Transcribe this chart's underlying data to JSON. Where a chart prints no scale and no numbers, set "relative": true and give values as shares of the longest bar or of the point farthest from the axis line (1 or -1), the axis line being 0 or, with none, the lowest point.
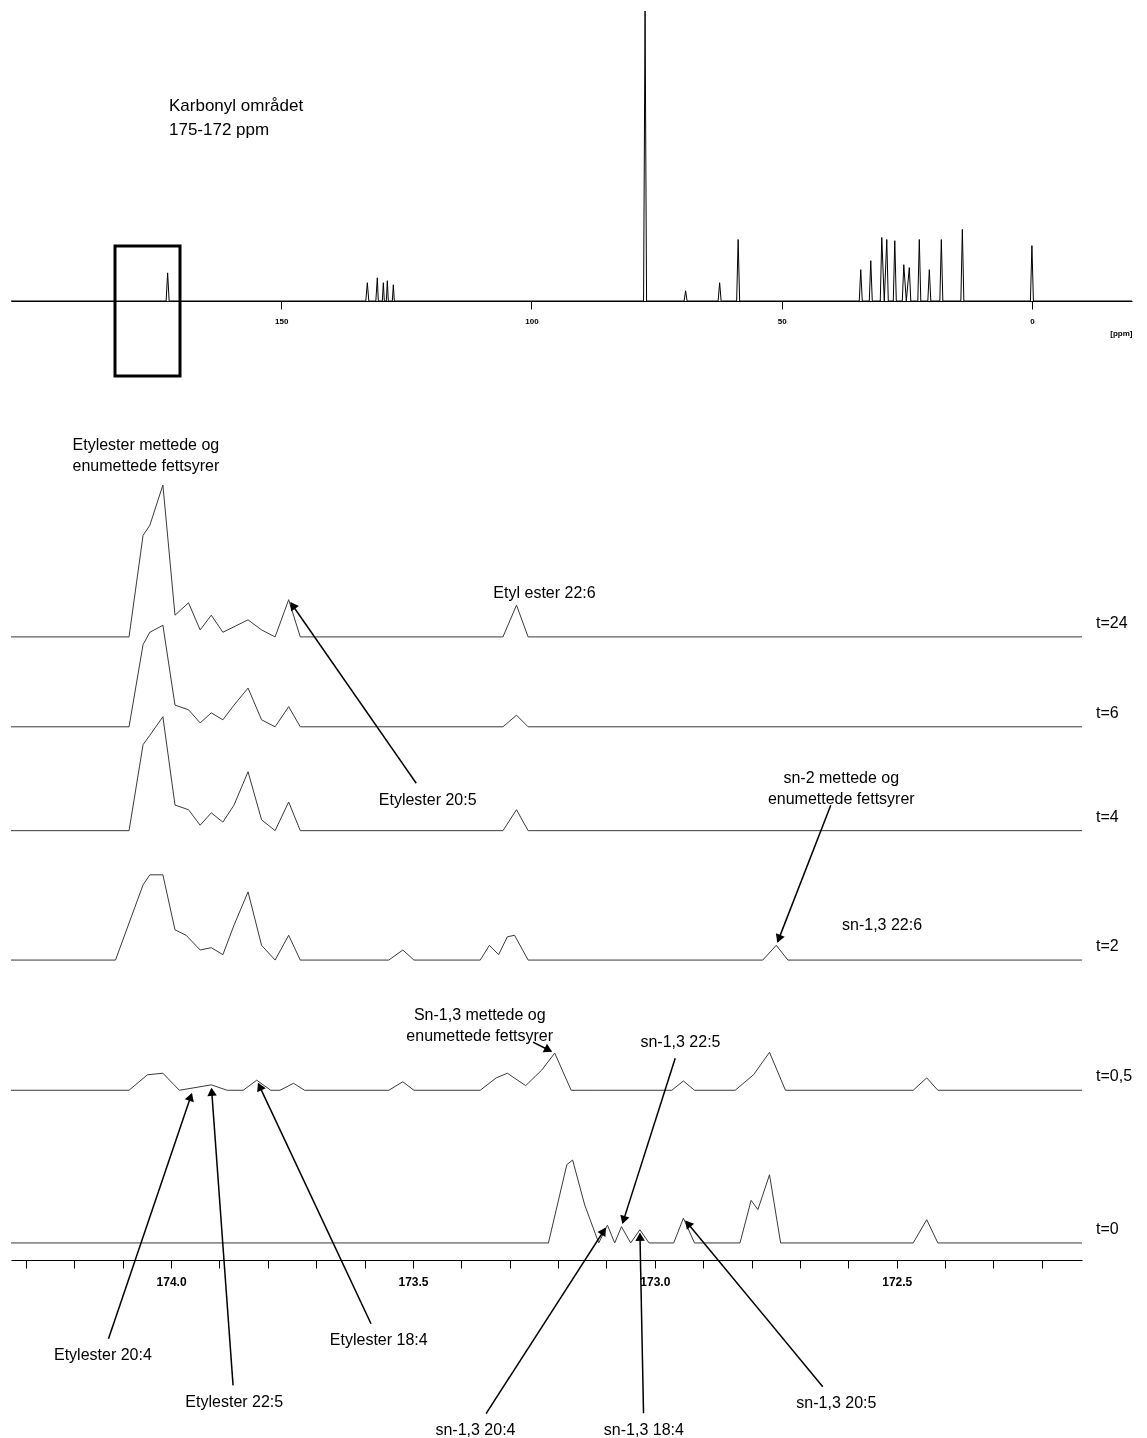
{
  "chart_data": [
    {
      "type": "line",
      "relative": true,
      "xlabel": "[ppm]",
      "xlim": [
        204,
        -20
      ],
      "xticks": [
        150,
        100,
        50,
        0
      ],
      "grid": false,
      "legend": false,
      "marker": "none",
      "line_style": "solid",
      "series": [
        {
          "color": "#000000",
          "x": [
            204,
            173.0,
            172.7,
            172.4,
            133.1,
            132.8,
            132.5,
            131.1,
            130.8,
            130.6,
            129.8,
            129.6,
            129.4,
            129.0,
            128.8,
            128.6,
            127.8,
            127.6,
            127.4,
            77.6,
            77.3,
            77.0,
            69.5,
            69.2,
            68.9,
            62.7,
            62.4,
            62.1,
            59.0,
            58.7,
            58.4,
            34.5,
            34.2,
            33.9,
            32.5,
            32.2,
            31.9,
            30.3,
            30.0,
            29.5,
            29.0,
            28.7,
            27.7,
            27.4,
            27.1,
            25.9,
            25.6,
            25.1,
            24.5,
            24.2,
            22.8,
            22.5,
            22.2,
            20.8,
            20.5,
            20.2,
            18.4,
            18.1,
            17.8,
            14.2,
            13.9,
            13.6,
            0.3,
            0,
            -0.3,
            -20
          ],
          "values": [
            0,
            0,
            0.097,
            0,
            0,
            0.063,
            0,
            0,
            0.08,
            0,
            0,
            0.063,
            0,
            0,
            0.07,
            0,
            0,
            0.056,
            0,
            0,
            1.0,
            0,
            0,
            0.035,
            0,
            0,
            0.063,
            0,
            0,
            0.212,
            0,
            0,
            0.108,
            0,
            0,
            0.139,
            0,
            0,
            0.219,
            0,
            0.212,
            0,
            0,
            0.208,
            0,
            0,
            0.125,
            0,
            0.115,
            0,
            0,
            0.212,
            0,
            0,
            0.108,
            0,
            0,
            0.212,
            0,
            0,
            0.247,
            0,
            0,
            0.191,
            0,
            0
          ]
        }
      ],
      "annotations": [
        "Karbonyl området\n175-172 ppm"
      ]
    },
    {
      "type": "line",
      "relative": true,
      "xlim": [
        174.331,
        172.117
      ],
      "xticks": [
        {
          "value": 174.3,
          "label": null
        },
        {
          "value": 174.2,
          "label": null
        },
        {
          "value": 174.1,
          "label": null
        },
        {
          "value": 174.0,
          "label": "174.0"
        },
        {
          "value": 173.9,
          "label": null
        },
        {
          "value": 173.8,
          "label": null
        },
        {
          "value": 173.7,
          "label": null
        },
        {
          "value": 173.6,
          "label": null
        },
        {
          "value": 173.5,
          "label": "173.5"
        },
        {
          "value": 173.4,
          "label": null
        },
        {
          "value": 173.3,
          "label": null
        },
        {
          "value": 173.2,
          "label": null
        },
        {
          "value": 173.1,
          "label": null
        },
        {
          "value": 173.0,
          "label": "173.0"
        },
        {
          "value": 172.9,
          "label": null
        },
        {
          "value": 172.8,
          "label": null
        },
        {
          "value": 172.7,
          "label": null
        },
        {
          "value": 172.6,
          "label": null
        },
        {
          "value": 172.5,
          "label": "172.5"
        },
        {
          "value": 172.4,
          "label": null
        },
        {
          "value": 172.3,
          "label": null
        },
        {
          "value": 172.2,
          "label": null
        }
      ],
      "grid": false,
      "legend": false,
      "marker": "none",
      "line_style": "solid",
      "series": [
        {
          "name": "t=24",
          "color": "#3a3a3a",
          "x": [
            174.331,
            174.087,
            174.058,
            174.044,
            174.017,
            173.992,
            173.964,
            173.94,
            173.917,
            173.893,
            173.841,
            173.813,
            173.785,
            173.757,
            173.733,
            173.314,
            173.286,
            173.262,
            172.117
          ],
          "values": [
            0.804,
            0.804,
            0.935,
            0.948,
            1.0,
            0.832,
            0.848,
            0.813,
            0.832,
            0.81,
            0.826,
            0.813,
            0.804,
            0.852,
            0.804,
            0.804,
            0.845,
            0.804,
            0.804
          ]
        },
        {
          "name": "t=6",
          "color": "#3a3a3a",
          "x": [
            174.331,
            174.087,
            174.058,
            174.044,
            174.017,
            173.992,
            173.964,
            173.94,
            173.917,
            173.893,
            173.87,
            173.841,
            173.813,
            173.785,
            173.757,
            173.733,
            173.314,
            173.286,
            173.262,
            172.117
          ],
          "values": [
            0.688,
            0.688,
            0.794,
            0.81,
            0.819,
            0.716,
            0.71,
            0.693,
            0.706,
            0.697,
            0.716,
            0.738,
            0.697,
            0.688,
            0.714,
            0.688,
            0.688,
            0.703,
            0.688,
            0.688
          ]
        },
        {
          "name": "t=4",
          "color": "#3a3a3a",
          "x": [
            174.331,
            174.087,
            174.058,
            174.044,
            174.017,
            173.992,
            173.964,
            173.94,
            173.917,
            173.893,
            173.87,
            173.841,
            173.813,
            173.785,
            173.757,
            173.733,
            173.314,
            173.286,
            173.262,
            172.117
          ],
          "values": [
            0.554,
            0.554,
            0.665,
            0.677,
            0.701,
            0.587,
            0.581,
            0.561,
            0.577,
            0.565,
            0.587,
            0.63,
            0.568,
            0.554,
            0.591,
            0.554,
            0.554,
            0.581,
            0.554,
            0.554
          ]
        },
        {
          "name": "t=2",
          "color": "#3a3a3a",
          "x": [
            174.331,
            174.115,
            174.058,
            174.044,
            174.017,
            173.992,
            173.969,
            173.94,
            173.917,
            173.893,
            173.87,
            173.841,
            173.813,
            173.785,
            173.757,
            173.733,
            173.55,
            173.521,
            173.498,
            173.361,
            173.342,
            173.323,
            173.305,
            173.29,
            173.262,
            172.777,
            172.749,
            172.725,
            172.117
          ],
          "values": [
            0.387,
            0.387,
            0.484,
            0.497,
            0.497,
            0.426,
            0.419,
            0.4,
            0.403,
            0.394,
            0.432,
            0.475,
            0.406,
            0.387,
            0.419,
            0.387,
            0.387,
            0.4,
            0.387,
            0.387,
            0.406,
            0.394,
            0.417,
            0.419,
            0.387,
            0.387,
            0.406,
            0.387,
            0.387
          ]
        },
        {
          "name": "t=0,5",
          "color": "#3a3a3a",
          "x": [
            174.331,
            174.087,
            174.049,
            174.017,
            173.983,
            173.917,
            173.884,
            173.851,
            173.823,
            173.794,
            173.775,
            173.747,
            173.724,
            173.55,
            173.521,
            173.498,
            173.361,
            173.328,
            173.305,
            173.267,
            173.234,
            173.207,
            173.173,
            173.126,
            172.965,
            172.941,
            172.918,
            172.834,
            172.796,
            172.763,
            172.73,
            172.466,
            172.438,
            172.415,
            172.117
          ],
          "values": [
            0.219,
            0.219,
            0.239,
            0.241,
            0.219,
            0.226,
            0.219,
            0.219,
            0.232,
            0.219,
            0.219,
            0.228,
            0.219,
            0.219,
            0.23,
            0.219,
            0.219,
            0.235,
            0.241,
            0.225,
            0.245,
            0.267,
            0.219,
            0.219,
            0.219,
            0.231,
            0.219,
            0.219,
            0.239,
            0.268,
            0.219,
            0.219,
            0.235,
            0.219,
            0.219
          ]
        },
        {
          "name": "t=0",
          "color": "#3a3a3a",
          "x": [
            174.331,
            173.22,
            173.182,
            173.17,
            173.145,
            173.116,
            173.098,
            173.083,
            173.069,
            173.05,
            173.031,
            173.012,
            172.961,
            172.941,
            172.918,
            172.824,
            172.801,
            172.787,
            172.763,
            172.74,
            172.466,
            172.438,
            172.415,
            172.117
          ],
          "values": [
            0.022,
            0.022,
            0.123,
            0.129,
            0.071,
            0.022,
            0.045,
            0.022,
            0.043,
            0.022,
            0.039,
            0.022,
            0.022,
            0.054,
            0.022,
            0.022,
            0.077,
            0.065,
            0.11,
            0.022,
            0.022,
            0.052,
            0.022,
            0.022
          ]
        }
      ],
      "annotations": [
        {
          "text": "Etylester mettede og\nenumettede fettsyrer",
          "x": 174.017,
          "y": 1.0
        },
        {
          "text": "Etyl ester 22:6",
          "x": 173.286,
          "y": 0.845
        },
        {
          "text": "Etylester 20:5",
          "x": 173.757,
          "y": 0.852
        },
        {
          "text": "sn-2 mettede og\nenumettede fettsyrer",
          "x": 172.749,
          "y": 0.406
        },
        {
          "text": "Sn-1,3 mettede og\nenumettede fettsyrer",
          "x": 173.207,
          "y": 0.267
        },
        {
          "text": "sn-1,3 22:5",
          "x": 173.069,
          "y": 0.043
        },
        {
          "text": "Etylester 20:4",
          "x": 173.955,
          "y": 0.219
        },
        {
          "text": "Etylester 22:5",
          "x": 173.917,
          "y": 0.226
        },
        {
          "text": "Etylester 18:4",
          "x": 173.823,
          "y": 0.232
        },
        {
          "text": "sn-1,3 20:4",
          "x": 173.098,
          "y": 0.045
        },
        {
          "text": "sn-1,3 18:4",
          "x": 173.031,
          "y": 0.039
        },
        {
          "text": "sn-1,3 20:5",
          "x": 172.941,
          "y": 0.054
        },
        "sn-1,3 22:6"
      ]
    }
  ]
}
